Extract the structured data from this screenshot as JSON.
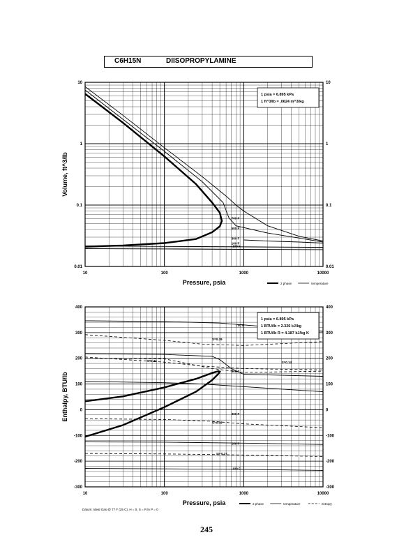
{
  "header": {
    "formula": "C6H15N",
    "name": "DIISOPROPYLAMINE"
  },
  "page_number": "245",
  "chart_data": [
    {
      "type": "line",
      "xlabel": "Pressure,  psia",
      "ylabel": "Volume, ft^3/lb",
      "xscale": "log",
      "yscale": "log",
      "xlim": [
        10,
        10000
      ],
      "ylim": [
        0.01,
        10
      ],
      "x_ticks": [
        "10",
        "100",
        "1000",
        "10000"
      ],
      "y_ticks": [
        "0.01",
        "0.1",
        "1",
        "10"
      ],
      "y_ticks_right": [
        "0.01",
        "0.1",
        "1",
        "10"
      ],
      "grid": true,
      "conversion_box": [
        "1 psia = 6.895 kPa",
        "1 ft^3/lb = .0624 m^3/kg"
      ],
      "legend": [
        {
          "name": "2 phase",
          "style": "heavy"
        },
        {
          "name": "temperature",
          "style": "thin"
        }
      ],
      "temperature_labels": [
        "700 F",
        "500 F",
        "300 F",
        "100 F",
        "-100 F"
      ],
      "series": [
        {
          "name": "2 phase",
          "style": "heavy",
          "x": [
            10,
            30,
            100,
            250,
            400,
            500,
            530,
            500,
            400,
            250,
            100,
            30,
            10
          ],
          "y": [
            6.5,
            2.2,
            0.62,
            0.22,
            0.11,
            0.075,
            0.055,
            0.045,
            0.036,
            0.028,
            0.024,
            0.022,
            0.021
          ]
        },
        {
          "name": "700 F",
          "style": "thin",
          "x": [
            10,
            30,
            100,
            300,
            600,
            800,
            1000,
            2000,
            5000,
            10000
          ],
          "y": [
            8.5,
            2.9,
            0.86,
            0.29,
            0.14,
            0.1,
            0.08,
            0.046,
            0.031,
            0.026
          ]
        },
        {
          "name": "500 F",
          "style": "thin",
          "x": [
            10,
            30,
            100,
            300,
            550,
            650,
            800,
            2000,
            5000,
            10000
          ],
          "y": [
            7.5,
            2.5,
            0.75,
            0.24,
            0.11,
            0.062,
            0.046,
            0.035,
            0.029,
            0.025
          ]
        },
        {
          "name": "300 F",
          "style": "thin",
          "x": [
            1000,
            2000,
            5000,
            10000
          ],
          "y": [
            0.027,
            0.026,
            0.025,
            0.024
          ]
        },
        {
          "name": "100 F",
          "style": "thin",
          "x": [
            10,
            100,
            1000,
            10000
          ],
          "y": [
            0.0215,
            0.0212,
            0.0209,
            0.0205
          ]
        },
        {
          "name": "-100 F",
          "style": "thin",
          "x": [
            10,
            100,
            1000,
            10000
          ],
          "y": [
            0.0195,
            0.0193,
            0.019,
            0.0188
          ]
        }
      ]
    },
    {
      "type": "line",
      "xlabel": "Pressure,  psia",
      "ylabel": "Enthalpy, BTU/lb",
      "xscale": "log",
      "xlim": [
        10,
        10000
      ],
      "ylim": [
        -300,
        400
      ],
      "x_ticks": [
        "10",
        "100",
        "1000",
        "10000"
      ],
      "y_ticks": [
        "-300",
        "-200",
        "-100",
        "0",
        "100",
        "200",
        "300",
        "400"
      ],
      "y_ticks_right": [
        "-300",
        "-200",
        "-100",
        "0",
        "100",
        "200",
        "300",
        "400"
      ],
      "grid": true,
      "conversion_box": [
        "1 psia = 6.895 kPa",
        "1 BTU/lb = 2.326 kJ/kg",
        "1 BTU/lb R = 4.187 kJ/kg K"
      ],
      "legend": [
        {
          "name": "2 phase",
          "style": "heavy"
        },
        {
          "name": "temperature",
          "style": "thin"
        },
        {
          "name": "entropy",
          "style": "dashed"
        }
      ],
      "footnote": "Datum: Ideal Gas @ 77 F (25 C),  H = 0,  S = R ln P = 0",
      "temperature_labels": [
        "700 F",
        "500 F",
        "300 F",
        "100 F",
        "-100 F"
      ],
      "entropy_labels": [
        "S=0.39",
        "S=0.21",
        "S=0.14",
        "S=0.08",
        "S=-0.27"
      ],
      "series": [
        {
          "name": "2 phase",
          "style": "heavy",
          "x": [
            10,
            30,
            100,
            250,
            400,
            480,
            500,
            480,
            400,
            250,
            100,
            30,
            10
          ],
          "y": [
            33,
            52,
            87,
            120,
            143,
            150,
            148,
            140,
            115,
            70,
            10,
            -60,
            -105
          ]
        },
        {
          "name": "700 F",
          "style": "thin",
          "x": [
            10,
            100,
            500,
            1000,
            3000,
            10000
          ],
          "y": [
            346,
            343,
            337,
            330,
            318,
            305
          ]
        },
        {
          "name": "500 F",
          "style": "thin",
          "x": [
            10,
            100,
            400,
            500,
            700,
            1000,
            10000
          ],
          "y": [
            218,
            215,
            208,
            195,
            160,
            138,
            130
          ]
        },
        {
          "name": "300 F",
          "style": "thin",
          "x": [
            10,
            100,
            300,
            10000
          ],
          "y": [
            110,
            105,
            100,
            70
          ]
        },
        {
          "name": "100 F",
          "style": "thin",
          "x": [
            10,
            100,
            1000,
            10000
          ],
          "y": [
            -125,
            -126,
            -130,
            -135
          ]
        },
        {
          "name": "-100 F",
          "style": "thin",
          "x": [
            10,
            100,
            1000,
            10000
          ],
          "y": [
            -228,
            -230,
            -232,
            -236
          ]
        },
        {
          "name": "S=0.39",
          "style": "dashed",
          "x": [
            10,
            100,
            300,
            1000,
            10000
          ],
          "y": [
            292,
            270,
            255,
            250,
            265
          ]
        },
        {
          "name": "S=0.21",
          "style": "dashed",
          "x": [
            10,
            100,
            300,
            1000,
            10000
          ],
          "y": [
            205,
            185,
            170,
            160,
            155
          ]
        },
        {
          "name": "S=0.14",
          "style": "dashed",
          "x": [
            10,
            100,
            400,
            1000,
            10000
          ],
          "y": [
            200,
            198,
            160,
            145,
            150
          ]
        },
        {
          "name": "S=0.08",
          "style": "dashed",
          "x": [
            10,
            100,
            400,
            1000,
            10000
          ],
          "y": [
            -35,
            -38,
            -45,
            -55,
            -70
          ]
        },
        {
          "name": "S=-0.27",
          "style": "dashed",
          "x": [
            10,
            100,
            1000,
            10000
          ],
          "y": [
            -170,
            -172,
            -176,
            -182
          ]
        }
      ]
    }
  ]
}
